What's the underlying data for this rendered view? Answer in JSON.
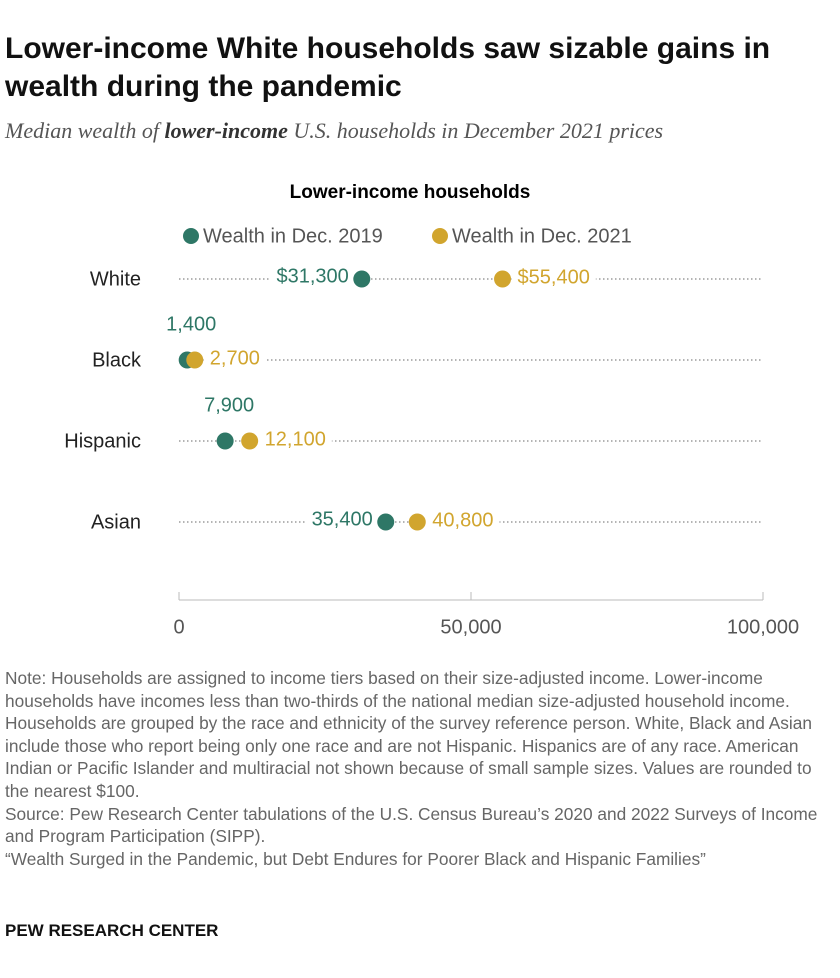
{
  "title": "Lower-income White households saw sizable gains in wealth during the pandemic",
  "subtitle": [
    "Median wealth of ",
    "lower-income",
    " U.S. households in December 2021 prices"
  ],
  "chart_data": {
    "type": "dot",
    "title": "Lower-income households",
    "categories": [
      "White",
      "Black",
      "Hispanic",
      "Asian"
    ],
    "series": [
      {
        "name": "Wealth in Dec. 2019",
        "color": "#2e7766",
        "values": [
          31300,
          1400,
          7900,
          35400
        ],
        "value_labels": [
          "$31,300",
          "1,400",
          "7,900",
          "35,400"
        ]
      },
      {
        "name": "Wealth in Dec. 2021",
        "color": "#d1a52e",
        "values": [
          55400,
          2700,
          12100,
          40800
        ],
        "value_labels": [
          "$55,400",
          "2,700",
          "12,100",
          "40,800"
        ]
      }
    ],
    "xlim": [
      0,
      100000
    ],
    "xticks": [
      0,
      {
        "value": 50000,
        "label": "50,000"
      },
      {
        "value": 100000,
        "label": "100,000"
      }
    ]
  },
  "note": "Note: Households are assigned to income tiers based on their size-adjusted income. Lower-income households have incomes less than two-thirds of the national median size-adjusted household income. Households are grouped by the race and ethnicity of the survey reference person. White, Black and Asian include those who report being only one race and are not Hispanic. Hispanics are of any race. American Indian or Pacific Islander and multiracial not shown because of small sample sizes. Values are rounded to the nearest $100.",
  "source": "Source: Pew Research Center tabulations of the U.S. Census Bureau’s 2020 and 2022 Surveys of Income and Program Participation (SIPP).",
  "report": "“Wealth Surged in the Pandemic, but Debt Endures for Poorer Black and Hispanic Families”",
  "footer": "PEW RESEARCH CENTER"
}
